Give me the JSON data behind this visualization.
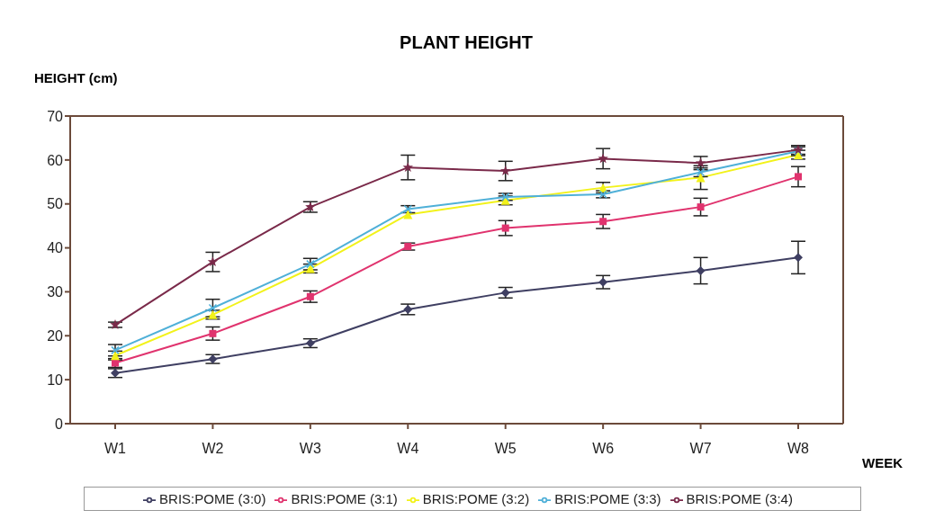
{
  "chart_data": {
    "type": "line",
    "title": "PLANT HEIGHT",
    "ylabel": "HEIGHT (cm)",
    "xlabel": "WEEK",
    "categories": [
      "W1",
      "W2",
      "W3",
      "W4",
      "W5",
      "W6",
      "W7",
      "W8"
    ],
    "ylim": [
      0,
      70
    ],
    "yticks": [
      0,
      10,
      20,
      30,
      40,
      50,
      60,
      70
    ],
    "grid": false,
    "legend": "bottom",
    "line_style": "solid",
    "series": [
      {
        "name": "BRIS:POME (3:0)",
        "color": "#3f3f62",
        "marker": "diamond",
        "values": [
          11.5,
          14.7,
          18.3,
          26,
          29.8,
          32.2,
          34.8,
          37.8
        ],
        "errors": [
          1,
          1,
          1,
          1.2,
          1.2,
          1.5,
          3,
          3.7
        ]
      },
      {
        "name": "BRIS:POME (3:1)",
        "color": "#e0336e",
        "marker": "square",
        "values": [
          13.8,
          20.5,
          28.9,
          40.3,
          44.5,
          46,
          49.3,
          56.2
        ],
        "errors": [
          1,
          1.5,
          1.3,
          0.8,
          1.7,
          1.6,
          2,
          2.3
        ]
      },
      {
        "name": "BRIS:POME (3:2)",
        "color": "#f2f21a",
        "marker": "triangle",
        "values": [
          15.5,
          24.8,
          35.3,
          47.6,
          50.8,
          53.7,
          56,
          61.2
        ],
        "errors": [
          1,
          1,
          1,
          null,
          1,
          1.2,
          2.7,
          1
        ]
      },
      {
        "name": "BRIS:POME (3:3)",
        "color": "#4fb0d8",
        "marker": "cross",
        "values": [
          16.7,
          26.3,
          36.3,
          48.8,
          51.6,
          52.2,
          57.2,
          62
        ],
        "errors": [
          1.3,
          2,
          1.3,
          0.8,
          0.8,
          0.8,
          1,
          1
        ]
      },
      {
        "name": "BRIS:POME (3:4)",
        "color": "#7a2a4a",
        "marker": "star",
        "values": [
          22.5,
          36.8,
          49.3,
          58.3,
          57.5,
          60.3,
          59.3,
          62.3
        ],
        "errors": [
          0.6,
          2.2,
          1.2,
          2.8,
          2.2,
          2.3,
          1.5,
          1
        ]
      }
    ]
  }
}
